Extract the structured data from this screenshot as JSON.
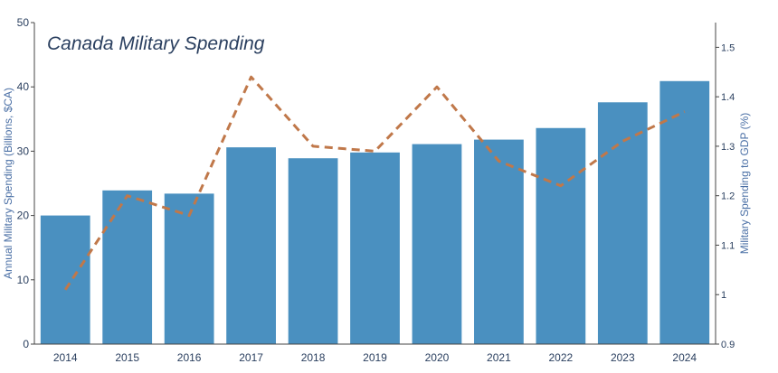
{
  "chart_data": {
    "type": "bar",
    "title": "Canada Military Spending",
    "categories": [
      "2014",
      "2015",
      "2016",
      "2017",
      "2018",
      "2019",
      "2020",
      "2021",
      "2022",
      "2023",
      "2024"
    ],
    "series": [
      {
        "type": "bar",
        "axis": "left",
        "values": [
          20.0,
          23.9,
          23.4,
          30.6,
          28.9,
          29.8,
          31.1,
          31.8,
          33.6,
          37.6,
          40.9
        ]
      },
      {
        "type": "line",
        "axis": "right",
        "style": "dashed",
        "values": [
          1.01,
          1.2,
          1.16,
          1.44,
          1.3,
          1.29,
          1.42,
          1.27,
          1.22,
          1.31,
          1.37
        ]
      }
    ],
    "ylabel": "Annual Military Spending (Billions, $CA)",
    "ylabel_right": "Military Spending to GDP (%)",
    "ylim": [
      0,
      50
    ],
    "ylim_right": [
      0.9,
      1.55
    ],
    "yticks": [
      "0",
      "10",
      "20",
      "30",
      "40",
      "50"
    ],
    "yticks_right": [
      "0.9",
      "1",
      "1.1",
      "1.2",
      "1.3",
      "1.4",
      "1.5"
    ],
    "grid": false,
    "colors": {
      "bar": "#4a90c0",
      "line": "#c0784a",
      "text": "#2a3f5f",
      "axis_title": "#4a6fa5"
    }
  }
}
